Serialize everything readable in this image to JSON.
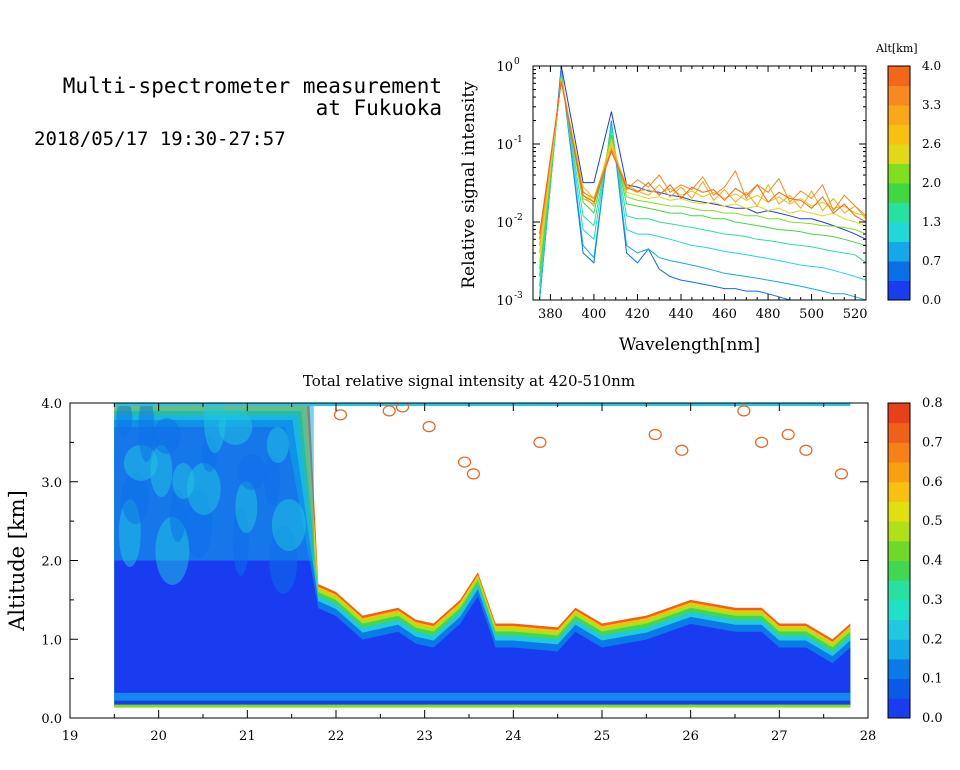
{
  "header": {
    "title_line1": "Multi-spectrometer measurement",
    "title_line2": "at Fukuoka",
    "date_range": "2018/05/17 19:30-27:57"
  },
  "chart_data": [
    {
      "type": "line",
      "xlabel": "Wavelength[nm]",
      "ylabel": "Relative signal intensity",
      "xlim": [
        372,
        525
      ],
      "ylim": [
        0.001,
        1
      ],
      "yscale": "log",
      "x_ticks": [
        380,
        400,
        420,
        440,
        460,
        480,
        500,
        520
      ],
      "y_ticks": [
        {
          "base": "10",
          "exp": "0",
          "value": 1
        },
        {
          "base": "10",
          "exp": "-1",
          "value": 0.1
        },
        {
          "base": "10",
          "exp": "-2",
          "value": 0.01
        },
        {
          "base": "10",
          "exp": "-3",
          "value": 0.001
        }
      ],
      "colorbar": {
        "title": "Alt[km]",
        "labels": [
          "0.0",
          "0.7",
          "1.3",
          "2.0",
          "2.6",
          "3.3",
          "4.0"
        ],
        "colors": [
          "#1a3cf0",
          "#0a70e8",
          "#14a8e8",
          "#20d8d8",
          "#28e0a0",
          "#40d840",
          "#80e020",
          "#e0d818",
          "#f8c010",
          "#f8a818",
          "#f88820",
          "#f06818"
        ]
      },
      "x": [
        375,
        385,
        395,
        400,
        408,
        415,
        420,
        425,
        430,
        435,
        440,
        445,
        450,
        455,
        460,
        465,
        470,
        475,
        480,
        485,
        490,
        495,
        500,
        505,
        510,
        515,
        520,
        525
      ],
      "series": [
        {
          "color": "#1a3cf0",
          "values": [
            0.001,
            1.0,
            0.032,
            0.032,
            0.26,
            0.03,
            0.028,
            0.025,
            0.024,
            0.022,
            0.021,
            0.019,
            0.018,
            0.017,
            0.016,
            0.015,
            0.015,
            0.013,
            0.014,
            0.013,
            0.012,
            0.011,
            0.011,
            0.01,
            0.009,
            0.008,
            0.007,
            0.006
          ]
        },
        {
          "color": "#0a70e8",
          "values": [
            0.001,
            0.9,
            0.004,
            0.003,
            0.2,
            0.004,
            0.003,
            0.0045,
            0.0025,
            0.002,
            0.0018,
            0.0017,
            0.0016,
            0.0015,
            0.0014,
            0.0014,
            0.0013,
            0.0013,
            0.0012,
            0.0011,
            0.001,
            0.001,
            0.001,
            0.001,
            0.001,
            0.001,
            0.001,
            0.001
          ]
        },
        {
          "color": "#14a8e8",
          "values": [
            0.001,
            0.85,
            0.005,
            0.0035,
            0.19,
            0.005,
            0.004,
            0.0045,
            0.0035,
            0.0032,
            0.003,
            0.0028,
            0.0026,
            0.0024,
            0.0022,
            0.0021,
            0.002,
            0.0019,
            0.0018,
            0.0017,
            0.0016,
            0.0015,
            0.0014,
            0.0013,
            0.0012,
            0.0012,
            0.0011,
            0.001
          ]
        },
        {
          "color": "#20d8d8",
          "values": [
            0.0012,
            0.8,
            0.008,
            0.006,
            0.17,
            0.008,
            0.007,
            0.007,
            0.0065,
            0.006,
            0.0055,
            0.005,
            0.0048,
            0.0045,
            0.0042,
            0.004,
            0.0038,
            0.0036,
            0.0034,
            0.0032,
            0.003,
            0.0028,
            0.0027,
            0.0026,
            0.0024,
            0.0022,
            0.002,
            0.0018
          ]
        },
        {
          "color": "#28e0a0",
          "values": [
            0.0015,
            0.75,
            0.012,
            0.009,
            0.15,
            0.012,
            0.011,
            0.011,
            0.01,
            0.0095,
            0.009,
            0.0085,
            0.008,
            0.0075,
            0.007,
            0.0068,
            0.0065,
            0.006,
            0.0058,
            0.0055,
            0.0052,
            0.005,
            0.0048,
            0.0045,
            0.0042,
            0.004,
            0.0038,
            0.003
          ]
        },
        {
          "color": "#40d840",
          "values": [
            0.002,
            0.7,
            0.018,
            0.013,
            0.13,
            0.017,
            0.016,
            0.015,
            0.014,
            0.013,
            0.013,
            0.012,
            0.012,
            0.011,
            0.011,
            0.01,
            0.0095,
            0.009,
            0.0085,
            0.008,
            0.0078,
            0.0075,
            0.007,
            0.0068,
            0.0065,
            0.006,
            0.0055,
            0.005
          ]
        },
        {
          "color": "#80e020",
          "values": [
            0.0025,
            0.72,
            0.022,
            0.016,
            0.12,
            0.021,
            0.019,
            0.018,
            0.017,
            0.016,
            0.016,
            0.015,
            0.014,
            0.014,
            0.013,
            0.013,
            0.012,
            0.012,
            0.011,
            0.011,
            0.01,
            0.0098,
            0.0095,
            0.009,
            0.0088,
            0.0085,
            0.008,
            0.007
          ]
        },
        {
          "color": "#e0d818",
          "values": [
            0.003,
            0.7,
            0.025,
            0.018,
            0.11,
            0.024,
            0.022,
            0.02,
            0.021,
            0.019,
            0.02,
            0.018,
            0.017,
            0.018,
            0.016,
            0.017,
            0.015,
            0.016,
            0.014,
            0.015,
            0.013,
            0.014,
            0.013,
            0.012,
            0.013,
            0.011,
            0.01,
            0.009
          ]
        },
        {
          "color": "#f8c010",
          "values": [
            0.004,
            0.68,
            0.028,
            0.02,
            0.1,
            0.027,
            0.025,
            0.026,
            0.023,
            0.027,
            0.022,
            0.025,
            0.021,
            0.024,
            0.02,
            0.023,
            0.019,
            0.022,
            0.018,
            0.021,
            0.017,
            0.02,
            0.016,
            0.018,
            0.015,
            0.016,
            0.013,
            0.012
          ]
        },
        {
          "color": "#f8a818",
          "values": [
            0.005,
            0.66,
            0.02,
            0.017,
            0.09,
            0.03,
            0.025,
            0.022,
            0.03,
            0.021,
            0.028,
            0.02,
            0.033,
            0.019,
            0.026,
            0.018,
            0.024,
            0.016,
            0.03,
            0.017,
            0.022,
            0.015,
            0.025,
            0.014,
            0.02,
            0.013,
            0.016,
            0.011
          ]
        },
        {
          "color": "#f88820",
          "values": [
            0.006,
            0.64,
            0.024,
            0.02,
            0.085,
            0.026,
            0.035,
            0.028,
            0.04,
            0.024,
            0.03,
            0.026,
            0.038,
            0.022,
            0.028,
            0.045,
            0.02,
            0.03,
            0.024,
            0.036,
            0.018,
            0.025,
            0.02,
            0.03,
            0.014,
            0.022,
            0.016,
            0.012
          ]
        },
        {
          "color": "#f06818",
          "values": [
            0.007,
            0.62,
            0.022,
            0.018,
            0.08,
            0.028,
            0.024,
            0.032,
            0.022,
            0.03,
            0.02,
            0.028,
            0.024,
            0.026,
            0.019,
            0.027,
            0.022,
            0.03,
            0.018,
            0.024,
            0.02,
            0.019,
            0.015,
            0.021,
            0.013,
            0.017,
            0.012,
            0.01
          ]
        }
      ]
    },
    {
      "type": "heatmap",
      "title": "Total relative signal intensity at 420-510nm",
      "ylabel": "Altitude [km]",
      "xlim": [
        19,
        28
      ],
      "ylim": [
        0,
        4
      ],
      "x_ticks": [
        "19",
        "20",
        "21",
        "22",
        "23",
        "24",
        "25",
        "26",
        "27",
        "28"
      ],
      "y_ticks": [
        "0.0",
        "1.0",
        "2.0",
        "3.0",
        "4.0"
      ],
      "colorbar": {
        "labels": [
          "0.0",
          "0.1",
          "0.2",
          "0.3",
          "0.4",
          "0.5",
          "0.6",
          "0.7",
          "0.8"
        ],
        "range": [
          0,
          0.8
        ],
        "colors": [
          "#1a3cf0",
          "#0a5ae8",
          "#0a7ae8",
          "#14a8e8",
          "#20c8e0",
          "#20e0c8",
          "#28e0a0",
          "#40d850",
          "#70d828",
          "#b0e018",
          "#e0e010",
          "#f8c010",
          "#f8a010",
          "#f88018",
          "#f06018",
          "#e84018"
        ]
      },
      "data_start_hour": 19.5,
      "data_end_hour": 27.8,
      "boundary_layer_top_km": {
        "hours": [
          19.5,
          20.0,
          21.0,
          21.7,
          21.8,
          22.0,
          22.3,
          22.7,
          22.9,
          23.1,
          23.4,
          23.6,
          23.8,
          24.0,
          24.5,
          24.7,
          25.0,
          25.5,
          26.0,
          26.5,
          26.8,
          27.0,
          27.3,
          27.6,
          27.8
        ],
        "values": [
          4.0,
          4.0,
          4.0,
          4.0,
          1.7,
          1.6,
          1.3,
          1.4,
          1.25,
          1.2,
          1.5,
          1.85,
          1.2,
          1.2,
          1.15,
          1.4,
          1.2,
          1.3,
          1.5,
          1.4,
          1.4,
          1.2,
          1.2,
          1.0,
          1.2
        ]
      }
    }
  ]
}
